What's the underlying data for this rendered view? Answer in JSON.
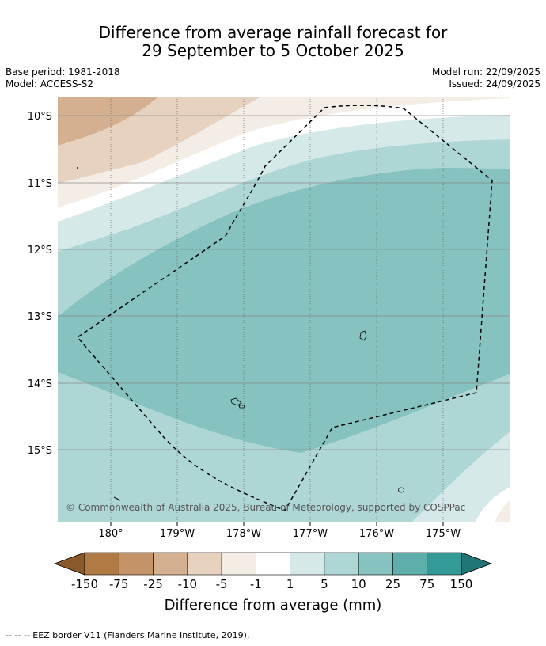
{
  "title": {
    "line1": "Difference from average rainfall forecast for",
    "line2": "29 September to 5 October 2025"
  },
  "meta": {
    "base_period": "Base period: 1981-2018",
    "model": "Model: ACCESS-S2",
    "model_run": "Model run: 22/09/2025",
    "issued": "Issued: 24/09/2025"
  },
  "map": {
    "lat_labels": [
      "10°S",
      "11°S",
      "12°S",
      "13°S",
      "14°S",
      "15°S"
    ],
    "lon_labels": [
      "180°",
      "179°W",
      "178°W",
      "177°W",
      "176°W",
      "175°W"
    ],
    "copyright": "© Commonwealth of Australia 2025, Bureau of Meteorology, supported by COSPPac",
    "eez_border": "dashed"
  },
  "colorbar": {
    "ticks": [
      "-150",
      "-75",
      "-25",
      "-10",
      "-5",
      "-1",
      "1",
      "5",
      "10",
      "25",
      "75",
      "150"
    ],
    "colors": [
      "#8b5a2b",
      "#b07a45",
      "#c49468",
      "#d4b090",
      "#e6d2bf",
      "#f3ede6",
      "#ffffff",
      "#d5e9e8",
      "#aed6d5",
      "#85c2c0",
      "#5eaeac",
      "#339a98",
      "#217574"
    ],
    "label": "Difference from average (mm)"
  },
  "footnote": "--  --  -- EEZ border V11 (Flanders Marine Institute, 2019)."
}
